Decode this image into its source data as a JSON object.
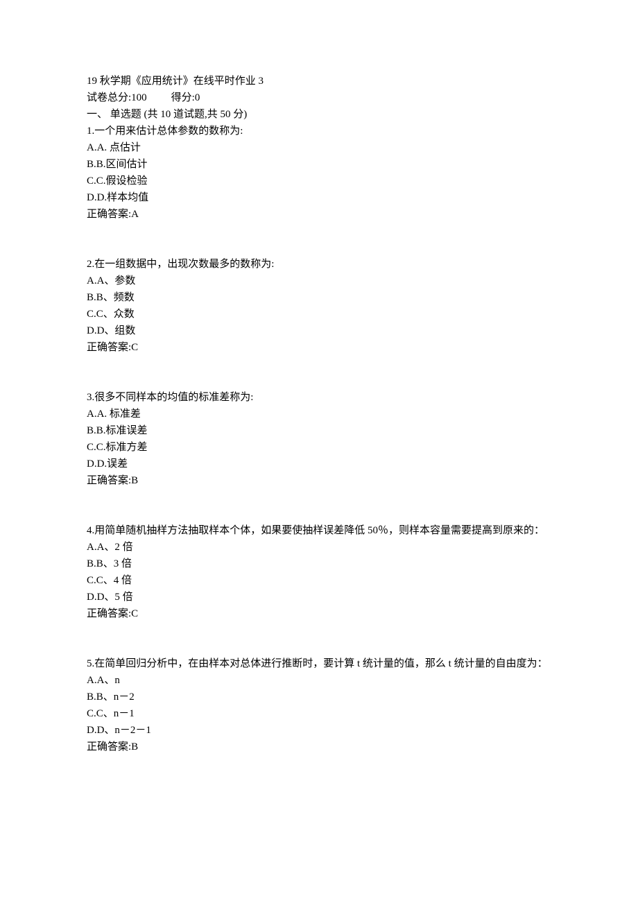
{
  "header": {
    "title": "19 秋学期《应用统计》在线平时作业 3",
    "score_total": "试卷总分:100",
    "score_got": "得分:0",
    "section": "一、 单选题 (共 10 道试题,共 50 分)"
  },
  "questions": [
    {
      "number": "1.",
      "stem": "一个用来估计总体参数的数称为:",
      "options": [
        "A.A. 点估计",
        "B.B.区间估计",
        "C.C.假设检验",
        "D.D.样本均值"
      ],
      "answer": "正确答案:A"
    },
    {
      "number": "2.",
      "stem": "在一组数据中，出现次数最多的数称为:",
      "options": [
        "A.A、参数",
        "B.B、频数",
        "C.C、众数",
        "D.D、组数"
      ],
      "answer": "正确答案:C"
    },
    {
      "number": "3.",
      "stem": "很多不同样本的均值的标准差称为:",
      "options": [
        "A.A. 标准差",
        "B.B.标准误差",
        "C.C.标准方差",
        "D.D.误差"
      ],
      "answer": "正确答案:B"
    },
    {
      "number": "4.",
      "stem": "用简单随机抽样方法抽取样本个体，如果要使抽样误差降低 50％，则样本容量需要提高到原来的：",
      "options": [
        "A.A、2 倍",
        "B.B、3 倍",
        "C.C、4 倍",
        "D.D、5 倍"
      ],
      "answer": "正确答案:C"
    },
    {
      "number": "5.",
      "stem": "在简单回归分析中，在由样本对总体进行推断时，要计算 t 统计量的值，那么 t 统计量的自由度为：",
      "options": [
        "A.A、n",
        "B.B、n－2",
        "C.C、n－1",
        "D.D、n－2－1"
      ],
      "answer": "正确答案:B"
    }
  ]
}
